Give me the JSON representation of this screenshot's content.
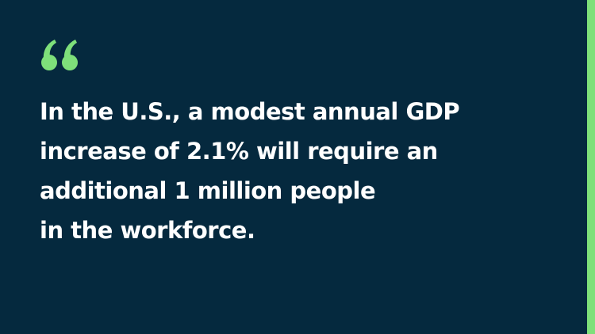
{
  "colors": {
    "background": "#05293e",
    "accent": "#7ee07a",
    "text": "#ffffff"
  },
  "icons": {
    "quote_mark": "open-quotation-mark-icon",
    "accent_bar": "vertical-accent-stripe"
  },
  "quote": {
    "lines": [
      "In the U.S., a modest annual GDP",
      "increase of 2.1% will require an",
      "additional 1 million people",
      "in the workforce."
    ]
  }
}
